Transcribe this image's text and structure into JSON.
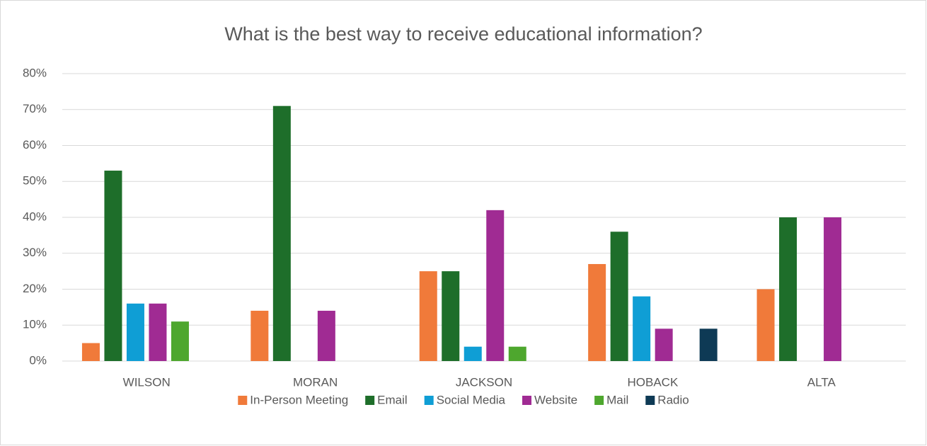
{
  "chart_data": {
    "type": "bar",
    "title": "What is the best way to receive educational information?",
    "categories": [
      "WILSON",
      "MORAN",
      "JACKSON",
      "HOBACK",
      "ALTA"
    ],
    "series": [
      {
        "name": "In-Person Meeting",
        "color": "#f07a3a",
        "values": [
          5,
          14,
          25,
          27,
          20
        ]
      },
      {
        "name": "Email",
        "color": "#1e6e2a",
        "values": [
          53,
          71,
          25,
          36,
          40
        ]
      },
      {
        "name": "Social Media",
        "color": "#0f9ed5",
        "values": [
          16,
          0,
          4,
          18,
          0
        ]
      },
      {
        "name": "Website",
        "color": "#a02b93",
        "values": [
          16,
          14,
          42,
          9,
          40
        ]
      },
      {
        "name": "Mail",
        "color": "#4ea72e",
        "values": [
          11,
          0,
          4,
          0,
          0
        ]
      },
      {
        "name": "Radio",
        "color": "#0e3a55",
        "values": [
          0,
          0,
          0,
          9,
          0
        ]
      }
    ],
    "ylim": [
      0,
      80
    ],
    "yticks": [
      {
        "value": 0,
        "label": "0%"
      },
      {
        "value": 10,
        "label": "10%"
      },
      {
        "value": 20,
        "label": "20%"
      },
      {
        "value": 30,
        "label": "30%"
      },
      {
        "value": 40,
        "label": "40%"
      },
      {
        "value": 50,
        "label": "50%"
      },
      {
        "value": 60,
        "label": "60%"
      },
      {
        "value": 70,
        "label": "70%"
      },
      {
        "value": 80,
        "label": "80%"
      }
    ],
    "grid": true,
    "legend": "bottom"
  }
}
